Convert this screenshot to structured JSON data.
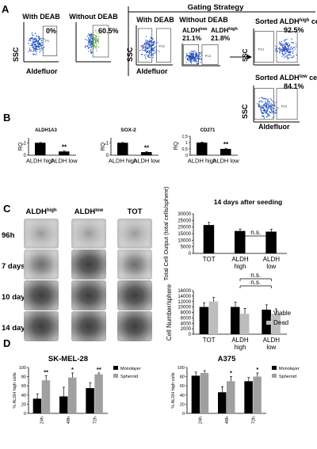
{
  "panels": {
    "a": {
      "letter": "A"
    },
    "b": {
      "letter": "B"
    },
    "c": {
      "letter": "C"
    },
    "d": {
      "letter": "D"
    }
  },
  "panelA": {
    "gating_title": "Gating Strategy",
    "plot1": {
      "title": "With DEAB",
      "gate_pct": "0%",
      "gate": "P1"
    },
    "plot2": {
      "title": "Without DEAB",
      "gate_pct": "60.5%",
      "gate": "P1"
    },
    "plot3": {
      "title": "With DEAB",
      "gates": [
        "P12",
        "P13"
      ]
    },
    "plot4": {
      "title": "Without DEAB",
      "low_label": "ALDH",
      "low_sup": "low",
      "low_pct": "21.1%",
      "high_label": "ALDH",
      "high_sup": "high",
      "high_pct": "21.8%",
      "gates": [
        "P12",
        "P13"
      ]
    },
    "sorted_high": {
      "title_pre": "Sorted ALDH",
      "title_sup": "high",
      "title_post": " cells",
      "pct": "92.5%",
      "gates": [
        "P12",
        "P13"
      ]
    },
    "sorted_low": {
      "title_pre": "Sorted ALDH",
      "title_sup": "low",
      "title_post": " cells",
      "pct": "84.1%",
      "gates": [
        "P12",
        "P13"
      ]
    },
    "ssc": "SSC",
    "aldefluor": "Aldefluor"
  },
  "panelC": {
    "col_headers": [
      {
        "base": "ALDH",
        "sup": "high"
      },
      {
        "base": "ALDH",
        "sup": "low"
      },
      {
        "base": "TOT",
        "sup": ""
      }
    ],
    "row_labels": [
      "96h",
      "7 days",
      "10 days",
      "14 days"
    ]
  },
  "chart_data": [
    {
      "type": "bar",
      "id": "b1",
      "title": "ALDH1A3",
      "ylabel": "RQ",
      "categories": [
        "ALDH high",
        "ALDH low"
      ],
      "values": [
        1.0,
        0.3
      ],
      "errors": [
        0.02,
        0.04
      ],
      "annotations": [
        "",
        "**"
      ],
      "yticks": [
        0,
        1
      ],
      "ylim": [
        0,
        1.4
      ],
      "colors": [
        "#000000",
        "#000000"
      ]
    },
    {
      "type": "bar",
      "id": "b2",
      "title": "SOX-2",
      "ylabel": "RQ",
      "categories": [
        "ALDH high",
        "ALDH low"
      ],
      "values": [
        1.0,
        0.25
      ],
      "errors": [
        0.02,
        0.04
      ],
      "annotations": [
        "",
        "**"
      ],
      "yticks": [
        0,
        1
      ],
      "ylim": [
        0,
        1.4
      ],
      "colors": [
        "#000000",
        "#000000"
      ]
    },
    {
      "type": "bar",
      "id": "b3",
      "title": "CD271",
      "ylabel": "RQ",
      "categories": [
        "ALDH high",
        "ALDH low"
      ],
      "values": [
        1.0,
        0.5
      ],
      "errors": [
        0.03,
        0.05
      ],
      "annotations": [
        "",
        "**"
      ],
      "yticks": [
        0,
        0.5,
        1,
        1.5
      ],
      "ytick_labels": [
        "0",
        "0,5",
        "1",
        "1,5"
      ],
      "ylim": [
        0,
        1.5
      ],
      "colors": [
        "#000000",
        "#000000"
      ]
    },
    {
      "type": "bar",
      "id": "c1",
      "title": "14 days after seeding",
      "ylabel": "Total Cell Output (total cells/sphere)",
      "categories": [
        "TOT",
        "ALDH high",
        "ALDH low"
      ],
      "values": [
        21500,
        17000,
        16500
      ],
      "errors": [
        2000,
        1500,
        1800
      ],
      "yticks": [
        0,
        5000,
        10000,
        15000,
        20000,
        25000,
        30000
      ],
      "ylim": [
        0,
        30000
      ],
      "sig": [
        {
          "from": 1,
          "to": 2,
          "label": "n.s."
        }
      ],
      "colors": [
        "#000000",
        "#000000",
        "#000000"
      ]
    },
    {
      "type": "bar",
      "id": "c2",
      "ylabel": "Cell Number/sphere",
      "categories": [
        "TOT",
        "ALDH high",
        "ALDH low"
      ],
      "series": [
        {
          "name": "Viable",
          "values": [
            10000,
            10000,
            9000
          ],
          "errors": [
            1500,
            1800,
            1800
          ],
          "color": "#000000"
        },
        {
          "name": "Dead",
          "values": [
            12000,
            7500,
            7500
          ],
          "errors": [
            1500,
            2000,
            1800
          ],
          "color": "#bdbdbd"
        }
      ],
      "yticks": [
        0,
        2000,
        4000,
        6000,
        8000,
        10000,
        12000,
        14000,
        16000
      ],
      "ylim": [
        0,
        16000
      ],
      "sig": [
        {
          "from": 1,
          "to": 2,
          "label": "n.s.",
          "level": 0
        },
        {
          "from": 1,
          "to": 2,
          "label": "n.s.",
          "level": 1
        }
      ],
      "legend": "right"
    },
    {
      "type": "bar",
      "id": "d1",
      "title": "SK-MEL-28",
      "ylabel": "% ALDH high cells",
      "categories": [
        "24h",
        "48h",
        "72h"
      ],
      "series": [
        {
          "name": "Monolayer",
          "values": [
            32,
            37,
            55
          ],
          "errors": [
            10,
            20,
            12
          ],
          "color": "#000000"
        },
        {
          "name": "Spheroid",
          "values": [
            72,
            78,
            85
          ],
          "errors": [
            10,
            10,
            3
          ],
          "color": "#a0a0a0"
        }
      ],
      "annotations": [
        "**",
        "*",
        "**"
      ],
      "yticks": [
        0,
        20,
        40,
        60,
        80,
        100
      ],
      "ylim": [
        0,
        100
      ],
      "legend": "top-right"
    },
    {
      "type": "bar",
      "id": "d2",
      "title": "A375",
      "ylabel": "% ALDH high cells",
      "categories": [
        "24h",
        "48h",
        "72h"
      ],
      "series": [
        {
          "name": "Monolayer",
          "values": [
            82,
            46,
            70
          ],
          "errors": [
            8,
            12,
            8
          ],
          "color": "#000000"
        },
        {
          "name": "Spheroid",
          "values": [
            88,
            70,
            80
          ],
          "errors": [
            5,
            10,
            8
          ],
          "color": "#a0a0a0"
        }
      ],
      "annotations": [
        "",
        "*",
        "*"
      ],
      "yticks": [
        0,
        20,
        40,
        60,
        80,
        100
      ],
      "ylim": [
        0,
        100
      ],
      "legend": "top-right"
    }
  ]
}
